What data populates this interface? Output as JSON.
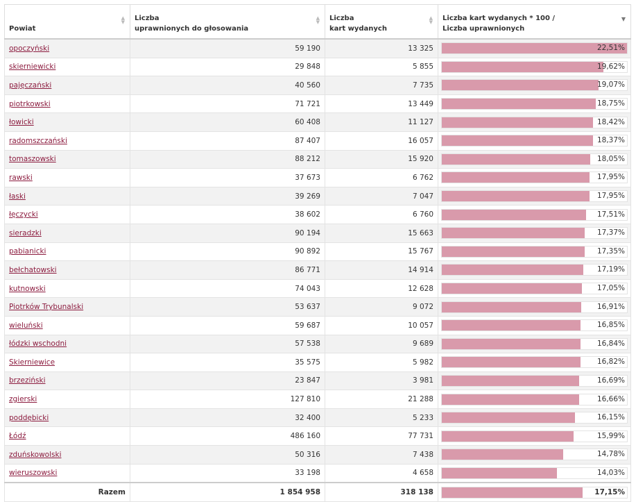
{
  "headers": {
    "powiat": "Powiat",
    "uprawnieni_l1": "Liczba",
    "uprawnieni_l2": "uprawnionych do głosowania",
    "karty_l1": "Liczba",
    "karty_l2": "kart wydanych",
    "ratio_l1": "Liczba kart wydanych * 100 /",
    "ratio_l2": "Liczba uprawnionych"
  },
  "colors": {
    "link": "#8c1c3f",
    "bar": "#d99aab"
  },
  "rows": [
    {
      "name": "opoczyński",
      "uprawnieni": "59 190",
      "karty": "13 325",
      "pct": "22,51%",
      "value": 22.51
    },
    {
      "name": "skierniewicki",
      "uprawnieni": "29 848",
      "karty": "5 855",
      "pct": "19,62%",
      "value": 19.62
    },
    {
      "name": "pajęczański",
      "uprawnieni": "40 560",
      "karty": "7 735",
      "pct": "19,07%",
      "value": 19.07
    },
    {
      "name": "piotrkowski",
      "uprawnieni": "71 721",
      "karty": "13 449",
      "pct": "18,75%",
      "value": 18.75
    },
    {
      "name": "łowicki",
      "uprawnieni": "60 408",
      "karty": "11 127",
      "pct": "18,42%",
      "value": 18.42
    },
    {
      "name": "radomszczański",
      "uprawnieni": "87 407",
      "karty": "16 057",
      "pct": "18,37%",
      "value": 18.37
    },
    {
      "name": "tomaszowski",
      "uprawnieni": "88 212",
      "karty": "15 920",
      "pct": "18,05%",
      "value": 18.05
    },
    {
      "name": "rawski",
      "uprawnieni": "37 673",
      "karty": "6 762",
      "pct": "17,95%",
      "value": 17.95
    },
    {
      "name": "łaski",
      "uprawnieni": "39 269",
      "karty": "7 047",
      "pct": "17,95%",
      "value": 17.95
    },
    {
      "name": "łęczycki",
      "uprawnieni": "38 602",
      "karty": "6 760",
      "pct": "17,51%",
      "value": 17.51
    },
    {
      "name": "sieradzki",
      "uprawnieni": "90 194",
      "karty": "15 663",
      "pct": "17,37%",
      "value": 17.37
    },
    {
      "name": "pabianicki",
      "uprawnieni": "90 892",
      "karty": "15 767",
      "pct": "17,35%",
      "value": 17.35
    },
    {
      "name": "bełchatowski",
      "uprawnieni": "86 771",
      "karty": "14 914",
      "pct": "17,19%",
      "value": 17.19
    },
    {
      "name": "kutnowski",
      "uprawnieni": "74 043",
      "karty": "12 628",
      "pct": "17,05%",
      "value": 17.05
    },
    {
      "name": "Piotrków Trybunalski",
      "uprawnieni": "53 637",
      "karty": "9 072",
      "pct": "16,91%",
      "value": 16.91
    },
    {
      "name": "wieluński",
      "uprawnieni": "59 687",
      "karty": "10 057",
      "pct": "16,85%",
      "value": 16.85
    },
    {
      "name": "łódzki wschodni",
      "uprawnieni": "57 538",
      "karty": "9 689",
      "pct": "16,84%",
      "value": 16.84
    },
    {
      "name": "Skierniewice",
      "uprawnieni": "35 575",
      "karty": "5 982",
      "pct": "16,82%",
      "value": 16.82
    },
    {
      "name": "brzeziński",
      "uprawnieni": "23 847",
      "karty": "3 981",
      "pct": "16,69%",
      "value": 16.69
    },
    {
      "name": "zgierski",
      "uprawnieni": "127 810",
      "karty": "21 288",
      "pct": "16,66%",
      "value": 16.66
    },
    {
      "name": "poddębicki",
      "uprawnieni": "32 400",
      "karty": "5 233",
      "pct": "16,15%",
      "value": 16.15
    },
    {
      "name": "Łódź",
      "uprawnieni": "486 160",
      "karty": "77 731",
      "pct": "15,99%",
      "value": 15.99
    },
    {
      "name": "zduńskowolski",
      "uprawnieni": "50 316",
      "karty": "7 438",
      "pct": "14,78%",
      "value": 14.78
    },
    {
      "name": "wieruszowski",
      "uprawnieni": "33 198",
      "karty": "4 658",
      "pct": "14,03%",
      "value": 14.03
    }
  ],
  "total": {
    "label": "Razem",
    "uprawnieni": "1 854 958",
    "karty": "318 138",
    "pct": "17,15%",
    "value": 17.15
  }
}
